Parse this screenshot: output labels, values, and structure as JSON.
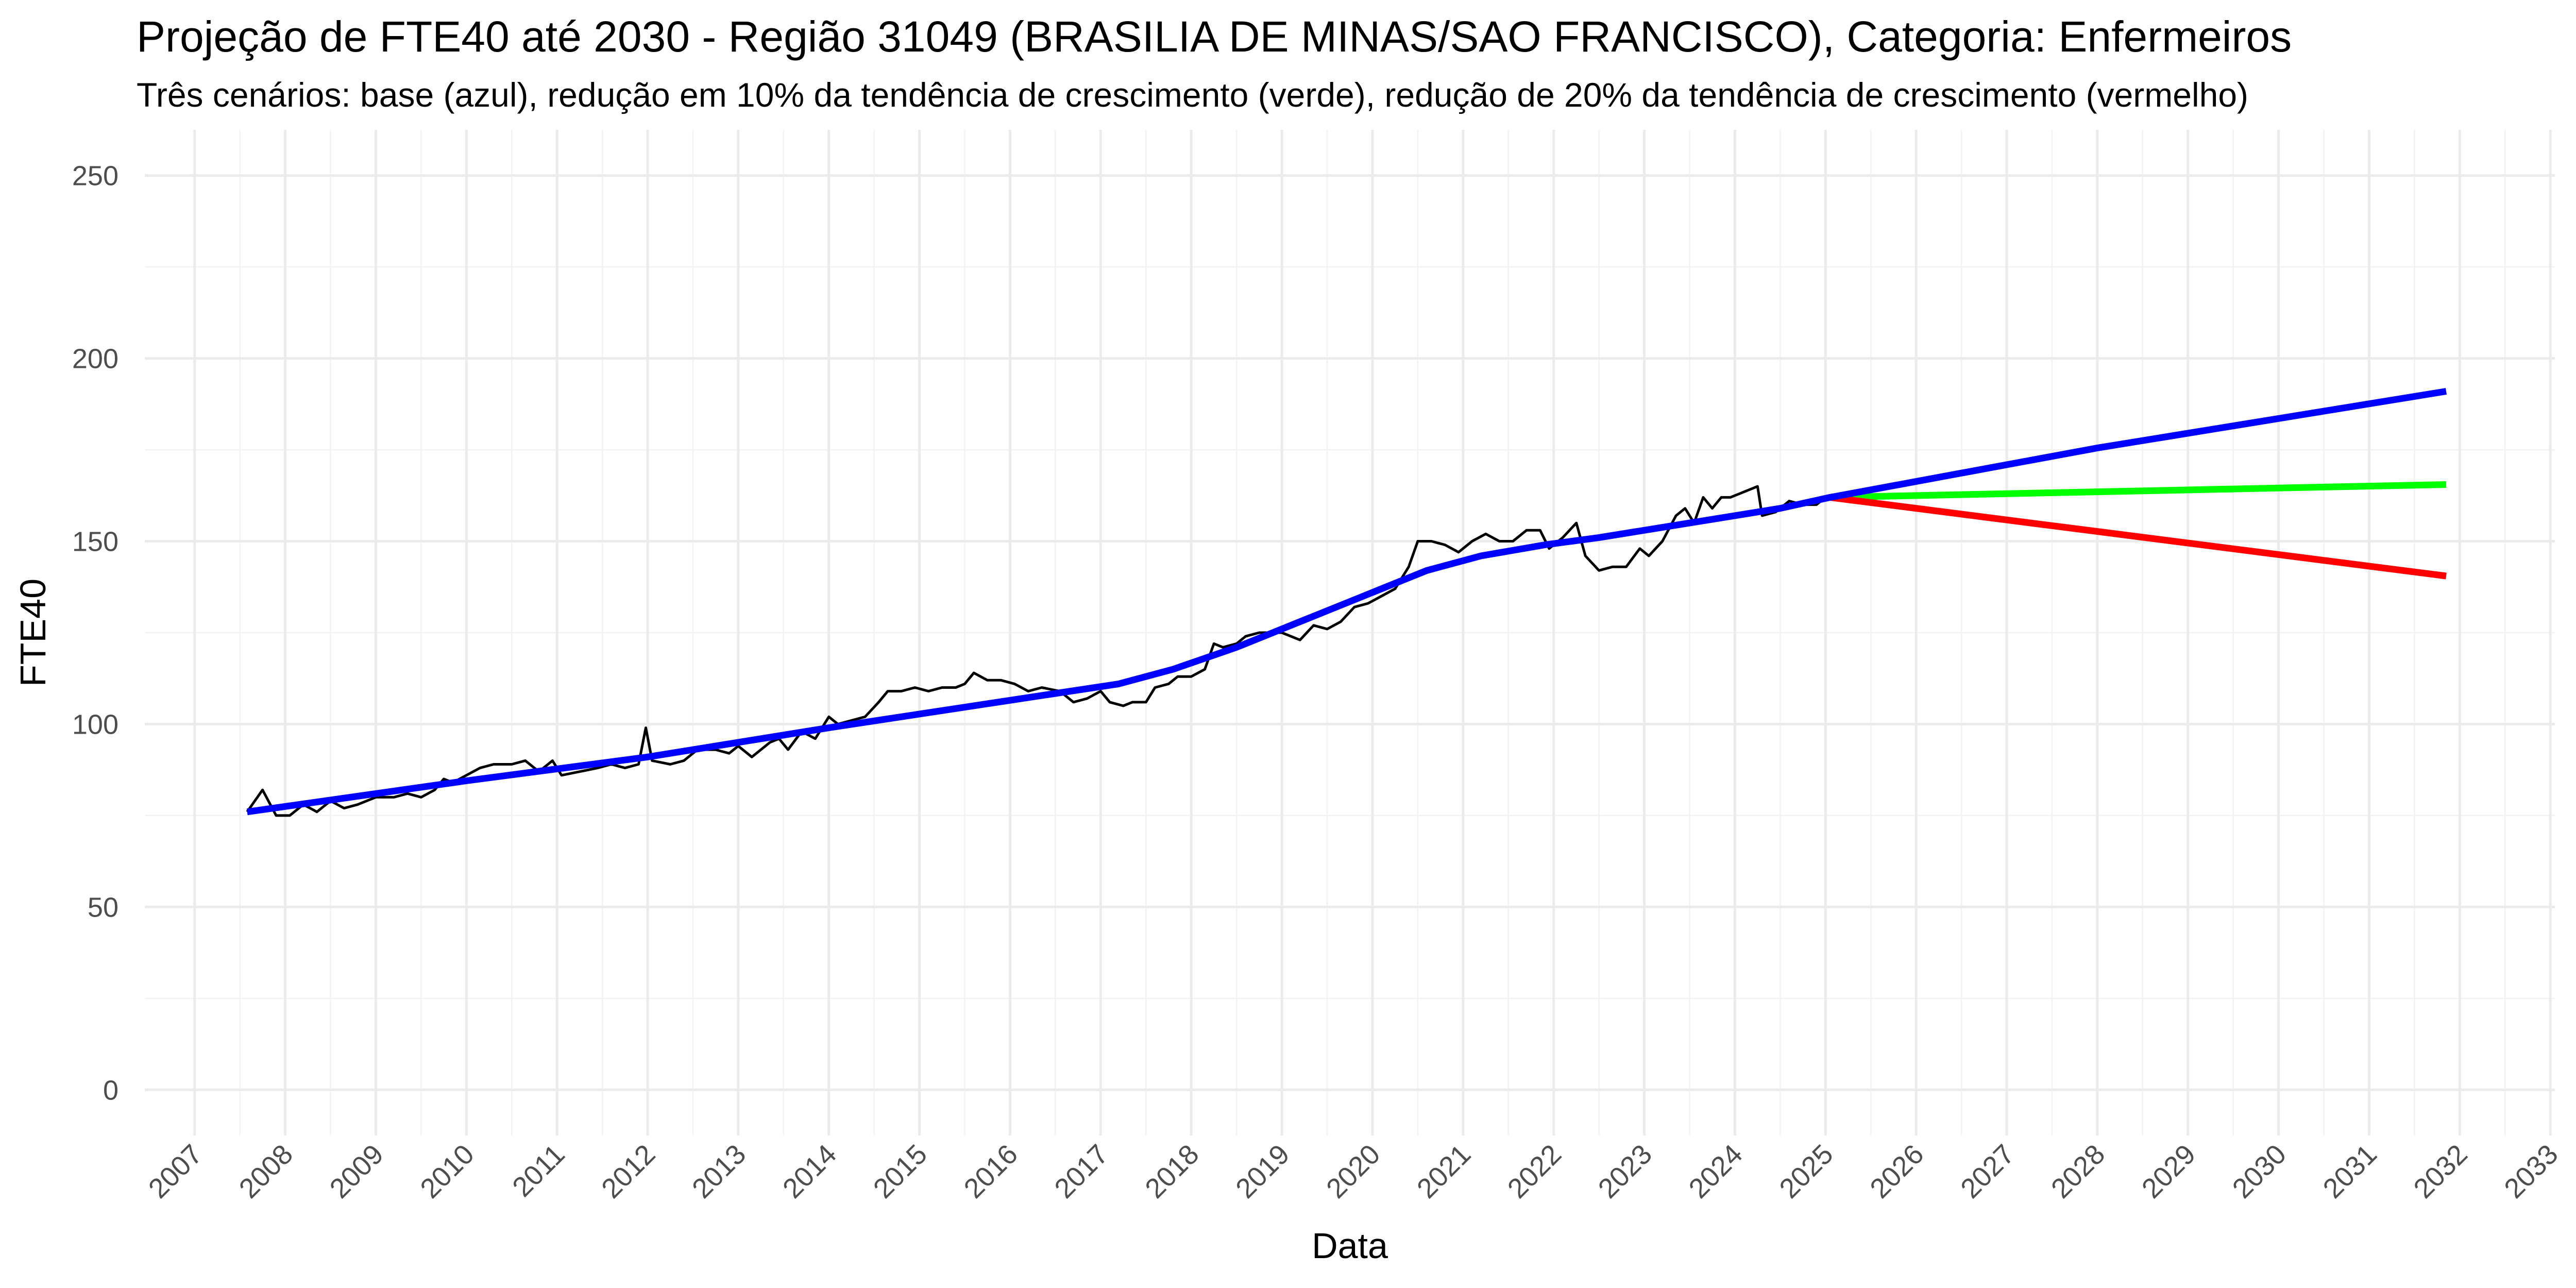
{
  "chart_data": {
    "type": "line",
    "title": "Projeção de FTE40 até 2030 - Região 31049 (BRASILIA DE MINAS/SAO FRANCISCO), Categoria: Enfermeiros",
    "subtitle": "Três cenários: base (azul), redução em 10% da tendência de crescimento (verde), redução de 20% da tendência de crescimento (vermelho)",
    "x_label": "Data",
    "y_label": "FTE40",
    "xlim": [
      2006.45,
      2033.05
    ],
    "ylim": [
      -12.5,
      262.5
    ],
    "xticks": [
      2007,
      2008,
      2009,
      2010,
      2011,
      2012,
      2013,
      2014,
      2015,
      2016,
      2017,
      2018,
      2019,
      2020,
      2021,
      2022,
      2023,
      2024,
      2025,
      2026,
      2027,
      2028,
      2029,
      2030,
      2031,
      2032,
      2033
    ],
    "yticks": [
      0,
      50,
      100,
      150,
      200,
      250
    ],
    "grid": true,
    "series": [
      {
        "color": "#000000",
        "x": [
          2007.58,
          2007.75,
          2007.9,
          2008.05,
          2008.2,
          2008.35,
          2008.5,
          2008.65,
          2008.8,
          2009.0,
          2009.2,
          2009.35,
          2009.5,
          2009.65,
          2009.75,
          2009.85,
          2010.0,
          2010.15,
          2010.3,
          2010.5,
          2010.65,
          2010.8,
          2010.95,
          2011.05,
          2011.25,
          2011.45,
          2011.6,
          2011.75,
          2011.9,
          2011.98,
          2012.05,
          2012.25,
          2012.4,
          2012.55,
          2012.75,
          2012.9,
          2013.0,
          2013.15,
          2013.35,
          2013.45,
          2013.55,
          2013.7,
          2013.85,
          2014.0,
          2014.1,
          2014.25,
          2014.4,
          2014.55,
          2014.65,
          2014.8,
          2014.95,
          2015.1,
          2015.25,
          2015.4,
          2015.5,
          2015.6,
          2015.75,
          2015.9,
          2016.05,
          2016.2,
          2016.35,
          2016.55,
          2016.7,
          2016.85,
          2017.0,
          2017.1,
          2017.25,
          2017.35,
          2017.5,
          2017.6,
          2017.75,
          2017.85,
          2018.0,
          2018.15,
          2018.25,
          2018.35,
          2018.5,
          2018.6,
          2018.75,
          2018.9,
          2019.0,
          2019.2,
          2019.35,
          2019.5,
          2019.65,
          2019.8,
          2019.95,
          2020.1,
          2020.25,
          2020.4,
          2020.5,
          2020.65,
          2020.8,
          2020.95,
          2021.1,
          2021.25,
          2021.4,
          2021.55,
          2021.7,
          2021.85,
          2021.95,
          2022.1,
          2022.25,
          2022.35,
          2022.5,
          2022.65,
          2022.8,
          2022.95,
          2023.05,
          2023.2,
          2023.35,
          2023.45,
          2023.55,
          2023.65,
          2023.75,
          2023.85,
          2023.95,
          2024.05,
          2024.15,
          2024.25,
          2024.3,
          2024.45,
          2024.6,
          2024.75,
          2024.9,
          2025.0
        ],
        "values": [
          76,
          82,
          75,
          75,
          78,
          76,
          79,
          77,
          78,
          80,
          80,
          81,
          80,
          82,
          85,
          84,
          86,
          88,
          89,
          89,
          90,
          87,
          90,
          86,
          87,
          88,
          89,
          88,
          89,
          99,
          90,
          89,
          90,
          93,
          93,
          92,
          94,
          91,
          95,
          96,
          93,
          98,
          96,
          102,
          100,
          101,
          102,
          106,
          109,
          109,
          110,
          109,
          110,
          110,
          111,
          114,
          112,
          112,
          111,
          109,
          110,
          109,
          106,
          107,
          109,
          106,
          105,
          106,
          106,
          110,
          111,
          113,
          113,
          115,
          122,
          121,
          122,
          124,
          125,
          125,
          125,
          123,
          127,
          126,
          128,
          132,
          133,
          135,
          137,
          143,
          150,
          150,
          149,
          147,
          150,
          152,
          150,
          150,
          153,
          153,
          148,
          151,
          155,
          146,
          142,
          143,
          143,
          148,
          146,
          150,
          157,
          159,
          155,
          162,
          159,
          162,
          162,
          163,
          164,
          165,
          157,
          158,
          161,
          160,
          160,
          162
        ]
      },
      {
        "color": "#00ff00",
        "x": [
          2025.05,
          2031.85
        ],
        "values": [
          162,
          165.5
        ]
      },
      {
        "color": "#ff0000",
        "x": [
          2025.05,
          2031.85
        ],
        "values": [
          162,
          140.5
        ]
      },
      {
        "color": "#0000ff",
        "x": [
          2007.58,
          2010,
          2012,
          2014,
          2016,
          2017.2,
          2017.8,
          2018.5,
          2019.2,
          2019.9,
          2020.6,
          2021.2,
          2021.9,
          2022.5,
          2023.5,
          2024.5,
          2025.05,
          2028,
          2031.85
        ],
        "values": [
          76,
          84.5,
          91,
          99,
          106.5,
          111,
          115,
          121,
          128,
          135,
          142,
          146,
          149,
          151,
          155,
          159,
          162,
          175.5,
          191
        ]
      }
    ]
  }
}
